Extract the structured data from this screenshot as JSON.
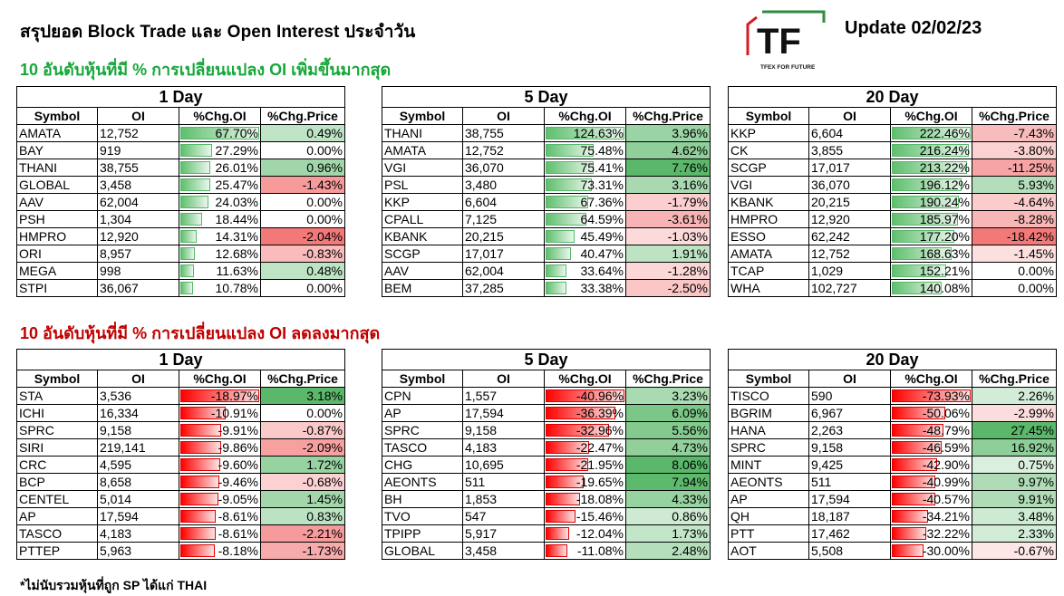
{
  "header": {
    "title": "สรุปยอด Block Trade และ Open Interest ประจำวัน",
    "update": "Update 02/02/23",
    "logo_letters": "TF",
    "logo_tagline": "TFEX FOR FUTURE"
  },
  "sections": {
    "up_title": "10 อันดับหุ้นที่มี % การเปลี่ยนแปลง OI เพิ่มขึ้นมากสุด",
    "down_title": "10 อันดับหุ้นที่มี % การเปลี่ยนแปลง OI ลดลงมากสุด"
  },
  "columns": [
    "Symbol",
    "OI",
    "%Chg.OI",
    "%Chg.Price"
  ],
  "footnote": "*ไม่นับรวมหุ้นที่ถูก SP ได้แก่ THAI",
  "tables": {
    "up_1": {
      "period": "1 Day",
      "rows": [
        [
          "AMATA",
          "12,752",
          "67.70%",
          "0.49%"
        ],
        [
          "BAY",
          "919",
          "27.29%",
          "0.00%"
        ],
        [
          "THANI",
          "38,755",
          "26.01%",
          "0.96%"
        ],
        [
          "GLOBAL",
          "3,458",
          "25.47%",
          "-1.43%"
        ],
        [
          "AAV",
          "62,004",
          "24.03%",
          "0.00%"
        ],
        [
          "PSH",
          "1,304",
          "18.44%",
          "0.00%"
        ],
        [
          "HMPRO",
          "12,920",
          "14.31%",
          "-2.04%"
        ],
        [
          "ORI",
          "8,957",
          "12.68%",
          "-0.83%"
        ],
        [
          "MEGA",
          "998",
          "11.63%",
          "0.48%"
        ],
        [
          "STPI",
          "36,067",
          "10.78%",
          "0.00%"
        ]
      ]
    },
    "up_5": {
      "period": "5 Day",
      "rows": [
        [
          "THANI",
          "38,755",
          "124.63%",
          "3.96%"
        ],
        [
          "AMATA",
          "12,752",
          "75.48%",
          "4.62%"
        ],
        [
          "VGI",
          "36,070",
          "75.41%",
          "7.76%"
        ],
        [
          "PSL",
          "3,480",
          "73.31%",
          "3.16%"
        ],
        [
          "KKP",
          "6,604",
          "67.36%",
          "-1.79%"
        ],
        [
          "CPALL",
          "7,125",
          "64.59%",
          "-3.61%"
        ],
        [
          "KBANK",
          "20,215",
          "45.49%",
          "-1.03%"
        ],
        [
          "SCGP",
          "17,017",
          "40.47%",
          "1.91%"
        ],
        [
          "AAV",
          "62,004",
          "33.64%",
          "-1.28%"
        ],
        [
          "BEM",
          "37,285",
          "33.38%",
          "-2.50%"
        ]
      ]
    },
    "up_20": {
      "period": "20 Day",
      "rows": [
        [
          "KKP",
          "6,604",
          "222.46%",
          "-7.43%"
        ],
        [
          "CK",
          "3,855",
          "216.24%",
          "-3.80%"
        ],
        [
          "SCGP",
          "17,017",
          "213.22%",
          "-11.25%"
        ],
        [
          "VGI",
          "36,070",
          "196.12%",
          "5.93%"
        ],
        [
          "KBANK",
          "20,215",
          "190.24%",
          "-4.64%"
        ],
        [
          "HMPRO",
          "12,920",
          "185.97%",
          "-8.28%"
        ],
        [
          "ESSO",
          "62,242",
          "177.20%",
          "-18.42%"
        ],
        [
          "AMATA",
          "12,752",
          "168.63%",
          "-1.45%"
        ],
        [
          "TCAP",
          "1,029",
          "152.21%",
          "0.00%"
        ],
        [
          "WHA",
          "102,727",
          "140.08%",
          "0.00%"
        ]
      ]
    },
    "down_1": {
      "period": "1 Day",
      "rows": [
        [
          "STA",
          "3,536",
          "-18.97%",
          "3.18%"
        ],
        [
          "ICHI",
          "16,334",
          "-10.91%",
          "0.00%"
        ],
        [
          "SPRC",
          "9,158",
          "-9.91%",
          "-0.87%"
        ],
        [
          "SIRI",
          "219,141",
          "-9.86%",
          "-2.09%"
        ],
        [
          "CRC",
          "4,595",
          "-9.60%",
          "1.72%"
        ],
        [
          "BCP",
          "8,658",
          "-9.46%",
          "-0.68%"
        ],
        [
          "CENTEL",
          "5,014",
          "-9.05%",
          "1.45%"
        ],
        [
          "AP",
          "17,594",
          "-8.61%",
          "0.83%"
        ],
        [
          "TASCO",
          "4,183",
          "-8.61%",
          "-2.21%"
        ],
        [
          "PTTEP",
          "5,963",
          "-8.18%",
          "-1.73%"
        ]
      ]
    },
    "down_5": {
      "period": "5 Day",
      "rows": [
        [
          "CPN",
          "1,557",
          "-40.96%",
          "3.23%"
        ],
        [
          "AP",
          "17,594",
          "-36.39%",
          "6.09%"
        ],
        [
          "SPRC",
          "9,158",
          "-32.96%",
          "5.56%"
        ],
        [
          "TASCO",
          "4,183",
          "-22.47%",
          "4.73%"
        ],
        [
          "CHG",
          "10,695",
          "-21.95%",
          "8.06%"
        ],
        [
          "AEONTS",
          "511",
          "-19.65%",
          "7.94%"
        ],
        [
          "BH",
          "1,853",
          "-18.08%",
          "4.33%"
        ],
        [
          "TVO",
          "547",
          "-15.46%",
          "0.86%"
        ],
        [
          "TPIPP",
          "5,917",
          "-12.04%",
          "1.73%"
        ],
        [
          "GLOBAL",
          "3,458",
          "-11.08%",
          "2.48%"
        ]
      ]
    },
    "down_20": {
      "period": "20 Day",
      "rows": [
        [
          "TISCO",
          "590",
          "-73.93%",
          "2.26%"
        ],
        [
          "BGRIM",
          "6,967",
          "-50.06%",
          "-2.99%"
        ],
        [
          "HANA",
          "2,263",
          "-48.79%",
          "27.45%"
        ],
        [
          "SPRC",
          "9,158",
          "-46.59%",
          "16.92%"
        ],
        [
          "MINT",
          "9,425",
          "-42.90%",
          "0.75%"
        ],
        [
          "AEONTS",
          "511",
          "-40.99%",
          "9.97%"
        ],
        [
          "AP",
          "17,594",
          "-40.57%",
          "9.91%"
        ],
        [
          "QH",
          "18,187",
          "-34.21%",
          "3.48%"
        ],
        [
          "PTT",
          "17,462",
          "-32.22%",
          "2.33%"
        ],
        [
          "AOT",
          "5,508",
          "-30.00%",
          "-0.67%"
        ]
      ]
    }
  },
  "colors": {
    "up_title": "#17a73a",
    "down_title": "#c00000",
    "bar_positive": "#5fbf6e",
    "bar_negative": "#ff0000",
    "price_positive": "#5bb86a",
    "price_negative": "#f26a6a",
    "logo_red": "#d71920",
    "logo_green": "#2e8b3d"
  }
}
